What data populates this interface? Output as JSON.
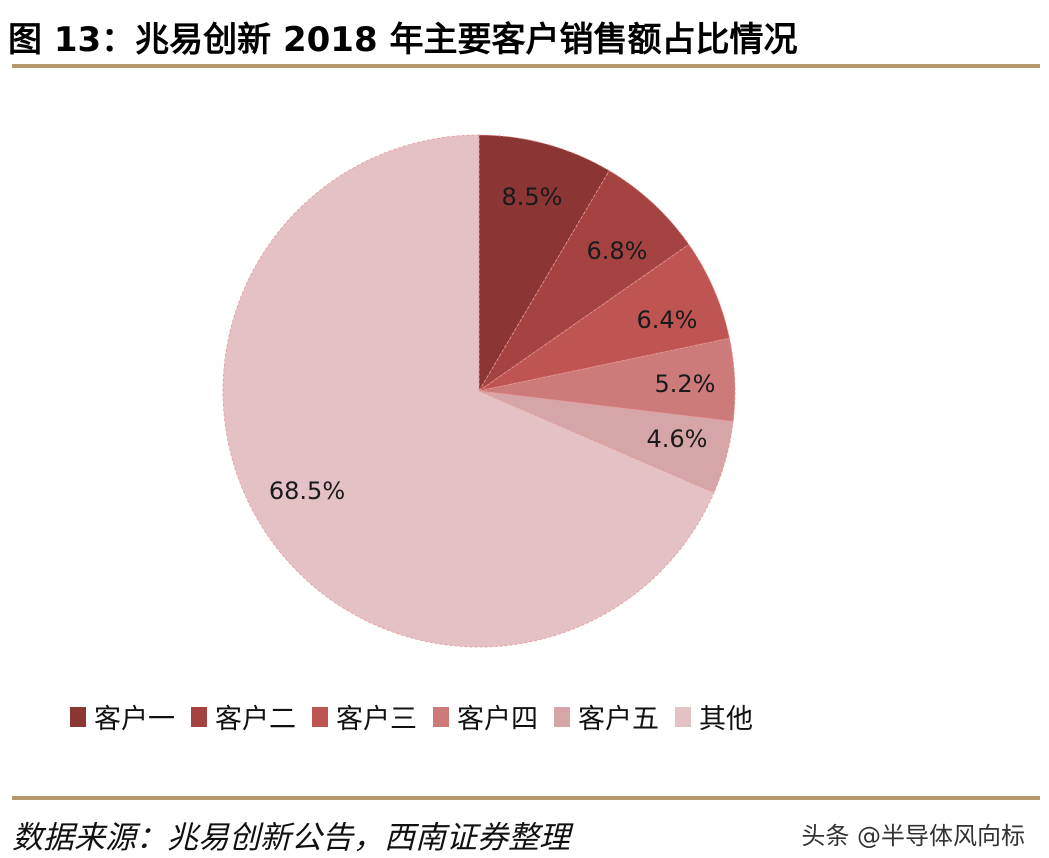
{
  "header": {
    "title": "图 13：兆易创新 2018 年主要客户销售额占比情况"
  },
  "footer": {
    "source": "数据来源：兆易创新公告，西南证券整理",
    "watermark": "头条 @半导体风向标"
  },
  "colors": {
    "rule": "#b49a6a",
    "slices": [
      "#8b3535",
      "#a54343",
      "#bf5552",
      "#cd7a7a",
      "#d6a5a7",
      "#e3c1c5"
    ]
  },
  "chart_data": {
    "type": "pie",
    "title": "兆易创新 2018 年主要客户销售额占比情况",
    "categories": [
      "客户一",
      "客户二",
      "客户三",
      "客户四",
      "客户五",
      "其他"
    ],
    "values": [
      8.5,
      6.8,
      6.4,
      5.2,
      4.6,
      68.5
    ],
    "labels": [
      "8.5%",
      "6.8%",
      "6.4%",
      "5.2%",
      "4.6%",
      "68.5%"
    ],
    "unit": "%",
    "start_angle": "12 o'clock",
    "direction": "clockwise",
    "legend_position": "bottom"
  }
}
